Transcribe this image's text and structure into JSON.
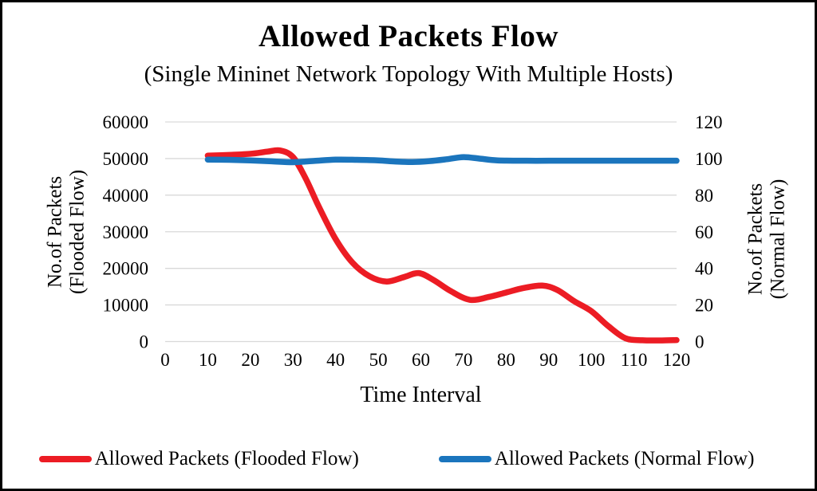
{
  "title": "Allowed Packets Flow",
  "subtitle": "(Single Mininet Network Topology With Multiple Hosts)",
  "axes": {
    "left_title_line1": "No.of Packets",
    "left_title_line2": "(Flooded Flow)",
    "right_title_line1": "No.of Packets",
    "right_title_line2": "(Normal Flow)",
    "x_title": "Time Interval"
  },
  "colors": {
    "flooded_red": "#ec1c24",
    "normal_blue": "#1b75bd",
    "gridline": "#d9d9d9",
    "text": "#000000",
    "frame_border": "#000000",
    "background": "#ffffff"
  },
  "chart_data": {
    "type": "line",
    "smooth": true,
    "title": "Allowed Packets Flow",
    "subtitle": "(Single Mininet Network Topology With Multiple Hosts)",
    "xlabel": "Time Interval",
    "ylabel_left": "No.of Packets (Flooded Flow)",
    "ylabel_right": "No.of Packets (Normal Flow)",
    "xlim": [
      0,
      120
    ],
    "ylim_left": [
      0,
      60000
    ],
    "ylim_right": [
      0,
      120
    ],
    "x_ticks": [
      0,
      10,
      20,
      30,
      40,
      50,
      60,
      70,
      80,
      90,
      100,
      110,
      120
    ],
    "left_ticks": [
      0,
      10000,
      20000,
      30000,
      40000,
      50000,
      60000
    ],
    "right_ticks": [
      0,
      20,
      40,
      60,
      80,
      100,
      120
    ],
    "grid": "horizontal",
    "legend_position": "bottom",
    "series": [
      {
        "name": "Allowed Packets (Flooded Flow)",
        "axis": "left",
        "color": "#ec1c24",
        "x": [
          10,
          15,
          20,
          24,
          27,
          30,
          33,
          36,
          40,
          44,
          48,
          52,
          56,
          59.5,
          63,
          67,
          71.5,
          76,
          80,
          84,
          88.5,
          92,
          96,
          100,
          104,
          108,
          112,
          116,
          120
        ],
        "values": [
          50800,
          51000,
          51300,
          51900,
          52200,
          50400,
          44500,
          37000,
          28000,
          21500,
          17800,
          16400,
          17600,
          18700,
          16800,
          13800,
          11400,
          12200,
          13400,
          14600,
          15300,
          14100,
          11000,
          8300,
          4200,
          900,
          350,
          300,
          400
        ]
      },
      {
        "name": "Allowed Packets (Normal Flow)",
        "axis": "right",
        "color": "#1b75bd",
        "x": [
          10,
          15,
          20,
          25,
          30,
          35,
          40,
          45,
          50,
          54,
          58,
          62,
          66,
          70,
          74,
          78,
          85,
          90,
          100,
          110,
          120
        ],
        "values": [
          99.4,
          99.3,
          99.0,
          98.5,
          98.0,
          98.7,
          99.4,
          99.3,
          99.0,
          98.4,
          98.1,
          98.6,
          99.6,
          100.8,
          99.9,
          99.0,
          98.8,
          98.8,
          98.8,
          98.8,
          98.8
        ]
      }
    ]
  }
}
